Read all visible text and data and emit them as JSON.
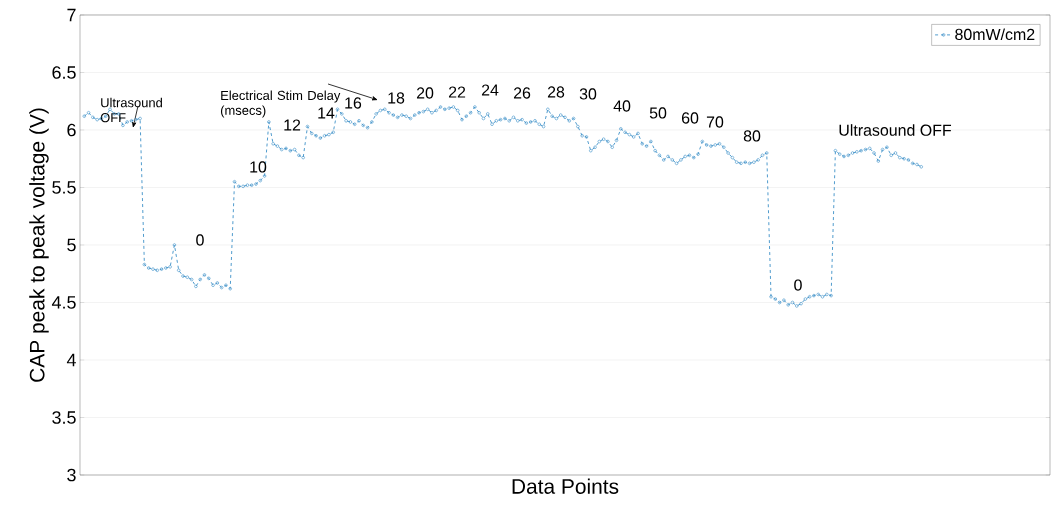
{
  "chart_data": {
    "type": "line",
    "xlabel": "Data Points",
    "ylabel": "CAP peak to peak voltage (V)",
    "categories": [
      null,
      null,
      null,
      null,
      null,
      null,
      null,
      null,
      null,
      null,
      null,
      null,
      null,
      null,
      null,
      null,
      null,
      null,
      null,
      null,
      null,
      null,
      null,
      null,
      null,
      null,
      null,
      null,
      null,
      null,
      null,
      null,
      null,
      null,
      null,
      null,
      null,
      null,
      null,
      null,
      null,
      null,
      null,
      null,
      null,
      null,
      null,
      null,
      null,
      null,
      null,
      null,
      null,
      null,
      null,
      null,
      null,
      null,
      null,
      null,
      null,
      null,
      null,
      null,
      null,
      null,
      null,
      null,
      null,
      null,
      null,
      null,
      null,
      null,
      null,
      null,
      null,
      null,
      null,
      null,
      null,
      null,
      null,
      null,
      null,
      null,
      null,
      null,
      null,
      null,
      null,
      null,
      null,
      null,
      null,
      null,
      null,
      null,
      null,
      null,
      null,
      null,
      null,
      null,
      null,
      null,
      null,
      null,
      null,
      null,
      null,
      null,
      null,
      null,
      null,
      null,
      null,
      null,
      null,
      null,
      null,
      null,
      null,
      null,
      null,
      null,
      null,
      null,
      null,
      null,
      null,
      null,
      null,
      null,
      null,
      null,
      null,
      null,
      null,
      null,
      null,
      null,
      null,
      null,
      null,
      null,
      null,
      null,
      null,
      null,
      null,
      null,
      null,
      null,
      null,
      null,
      null,
      null,
      null,
      null,
      null,
      null,
      null,
      null,
      null,
      null,
      null,
      null,
      null,
      null,
      null,
      null,
      null,
      null,
      null,
      null,
      null,
      null,
      null,
      null,
      null,
      null,
      null,
      null,
      null,
      null,
      null,
      null,
      null,
      null,
      null,
      null,
      null,
      null,
      null,
      null,
      null,
      null,
      null,
      null,
      null,
      null,
      null,
      null,
      null,
      null,
      null,
      null,
      null,
      null,
      null,
      null,
      null,
      null,
      null,
      null,
      null,
      null,
      null,
      null,
      null,
      null,
      null,
      null,
      null
    ],
    "series": [
      {
        "name": "80mW/cm2",
        "color": "#3b8fc7",
        "values": [
          6.12,
          6.15,
          6.11,
          6.09,
          6.1,
          6.12,
          6.18,
          6.14,
          6.14,
          6.04,
          6.07,
          6.08,
          6.09,
          6.1,
          4.83,
          4.8,
          4.79,
          4.78,
          4.79,
          4.8,
          4.81,
          5.0,
          4.78,
          4.73,
          4.72,
          4.7,
          4.64,
          4.7,
          4.74,
          4.71,
          4.65,
          4.67,
          4.63,
          4.65,
          4.62,
          5.55,
          5.51,
          5.51,
          5.52,
          5.52,
          5.53,
          5.56,
          5.6,
          6.07,
          5.88,
          5.86,
          5.83,
          5.84,
          5.82,
          5.83,
          5.78,
          5.76,
          6.03,
          5.97,
          5.95,
          5.93,
          5.95,
          5.96,
          5.98,
          6.18,
          6.14,
          6.08,
          6.07,
          6.05,
          6.08,
          6.04,
          6.02,
          6.07,
          6.14,
          6.17,
          6.18,
          6.15,
          6.13,
          6.11,
          6.13,
          6.12,
          6.1,
          6.13,
          6.15,
          6.16,
          6.18,
          6.15,
          6.17,
          6.2,
          6.18,
          6.19,
          6.2,
          6.17,
          6.09,
          6.12,
          6.15,
          6.2,
          6.15,
          6.1,
          6.14,
          6.05,
          6.08,
          6.09,
          6.1,
          6.08,
          6.11,
          6.08,
          6.09,
          6.06,
          6.07,
          6.08,
          6.05,
          6.03,
          6.18,
          6.12,
          6.1,
          6.13,
          6.11,
          6.08,
          6.1,
          6.03,
          5.95,
          5.94,
          5.82,
          5.85,
          5.9,
          5.92,
          5.9,
          5.85,
          5.91,
          6.01,
          5.98,
          5.96,
          5.94,
          5.97,
          5.88,
          5.86,
          5.9,
          5.82,
          5.78,
          5.74,
          5.77,
          5.74,
          5.71,
          5.74,
          5.77,
          5.78,
          5.76,
          5.79,
          5.9,
          5.87,
          5.86,
          5.87,
          5.88,
          5.85,
          5.8,
          5.76,
          5.72,
          5.71,
          5.72,
          5.71,
          5.72,
          5.74,
          5.78,
          5.8,
          4.55,
          4.53,
          4.5,
          4.52,
          4.48,
          4.5,
          4.47,
          4.49,
          4.53,
          4.55,
          4.56,
          4.57,
          4.55,
          4.57,
          4.56,
          5.82,
          5.79,
          5.77,
          5.78,
          5.8,
          5.81,
          5.82,
          5.83,
          5.84,
          5.8,
          5.73,
          5.83,
          5.85,
          5.78,
          5.8,
          5.76,
          5.75,
          5.74,
          5.71,
          5.7,
          5.68,
          null,
          null,
          null,
          null,
          null,
          null,
          null,
          null,
          null,
          null,
          null,
          null,
          null,
          null,
          null,
          null,
          null,
          null,
          null,
          null,
          null,
          null,
          null,
          null,
          null,
          null,
          null,
          null,
          null
        ]
      }
    ],
    "ylim": [
      3,
      7
    ],
    "yticks": [
      3,
      3.5,
      4,
      4.5,
      5,
      5.5,
      6,
      6.5,
      7
    ],
    "grid": "y",
    "legend": "top right",
    "marker": "circle",
    "line_style": "dashed",
    "annotations": [
      "Ultrasound OFF",
      "Electrical Stim Delay (msecs)",
      "0",
      "10",
      "12",
      "14",
      "16",
      "18",
      "20",
      "22",
      "24",
      "26",
      "28",
      "30",
      "40",
      "50",
      "60",
      "70",
      "80",
      "0",
      "Ultrasound OFF"
    ]
  }
}
